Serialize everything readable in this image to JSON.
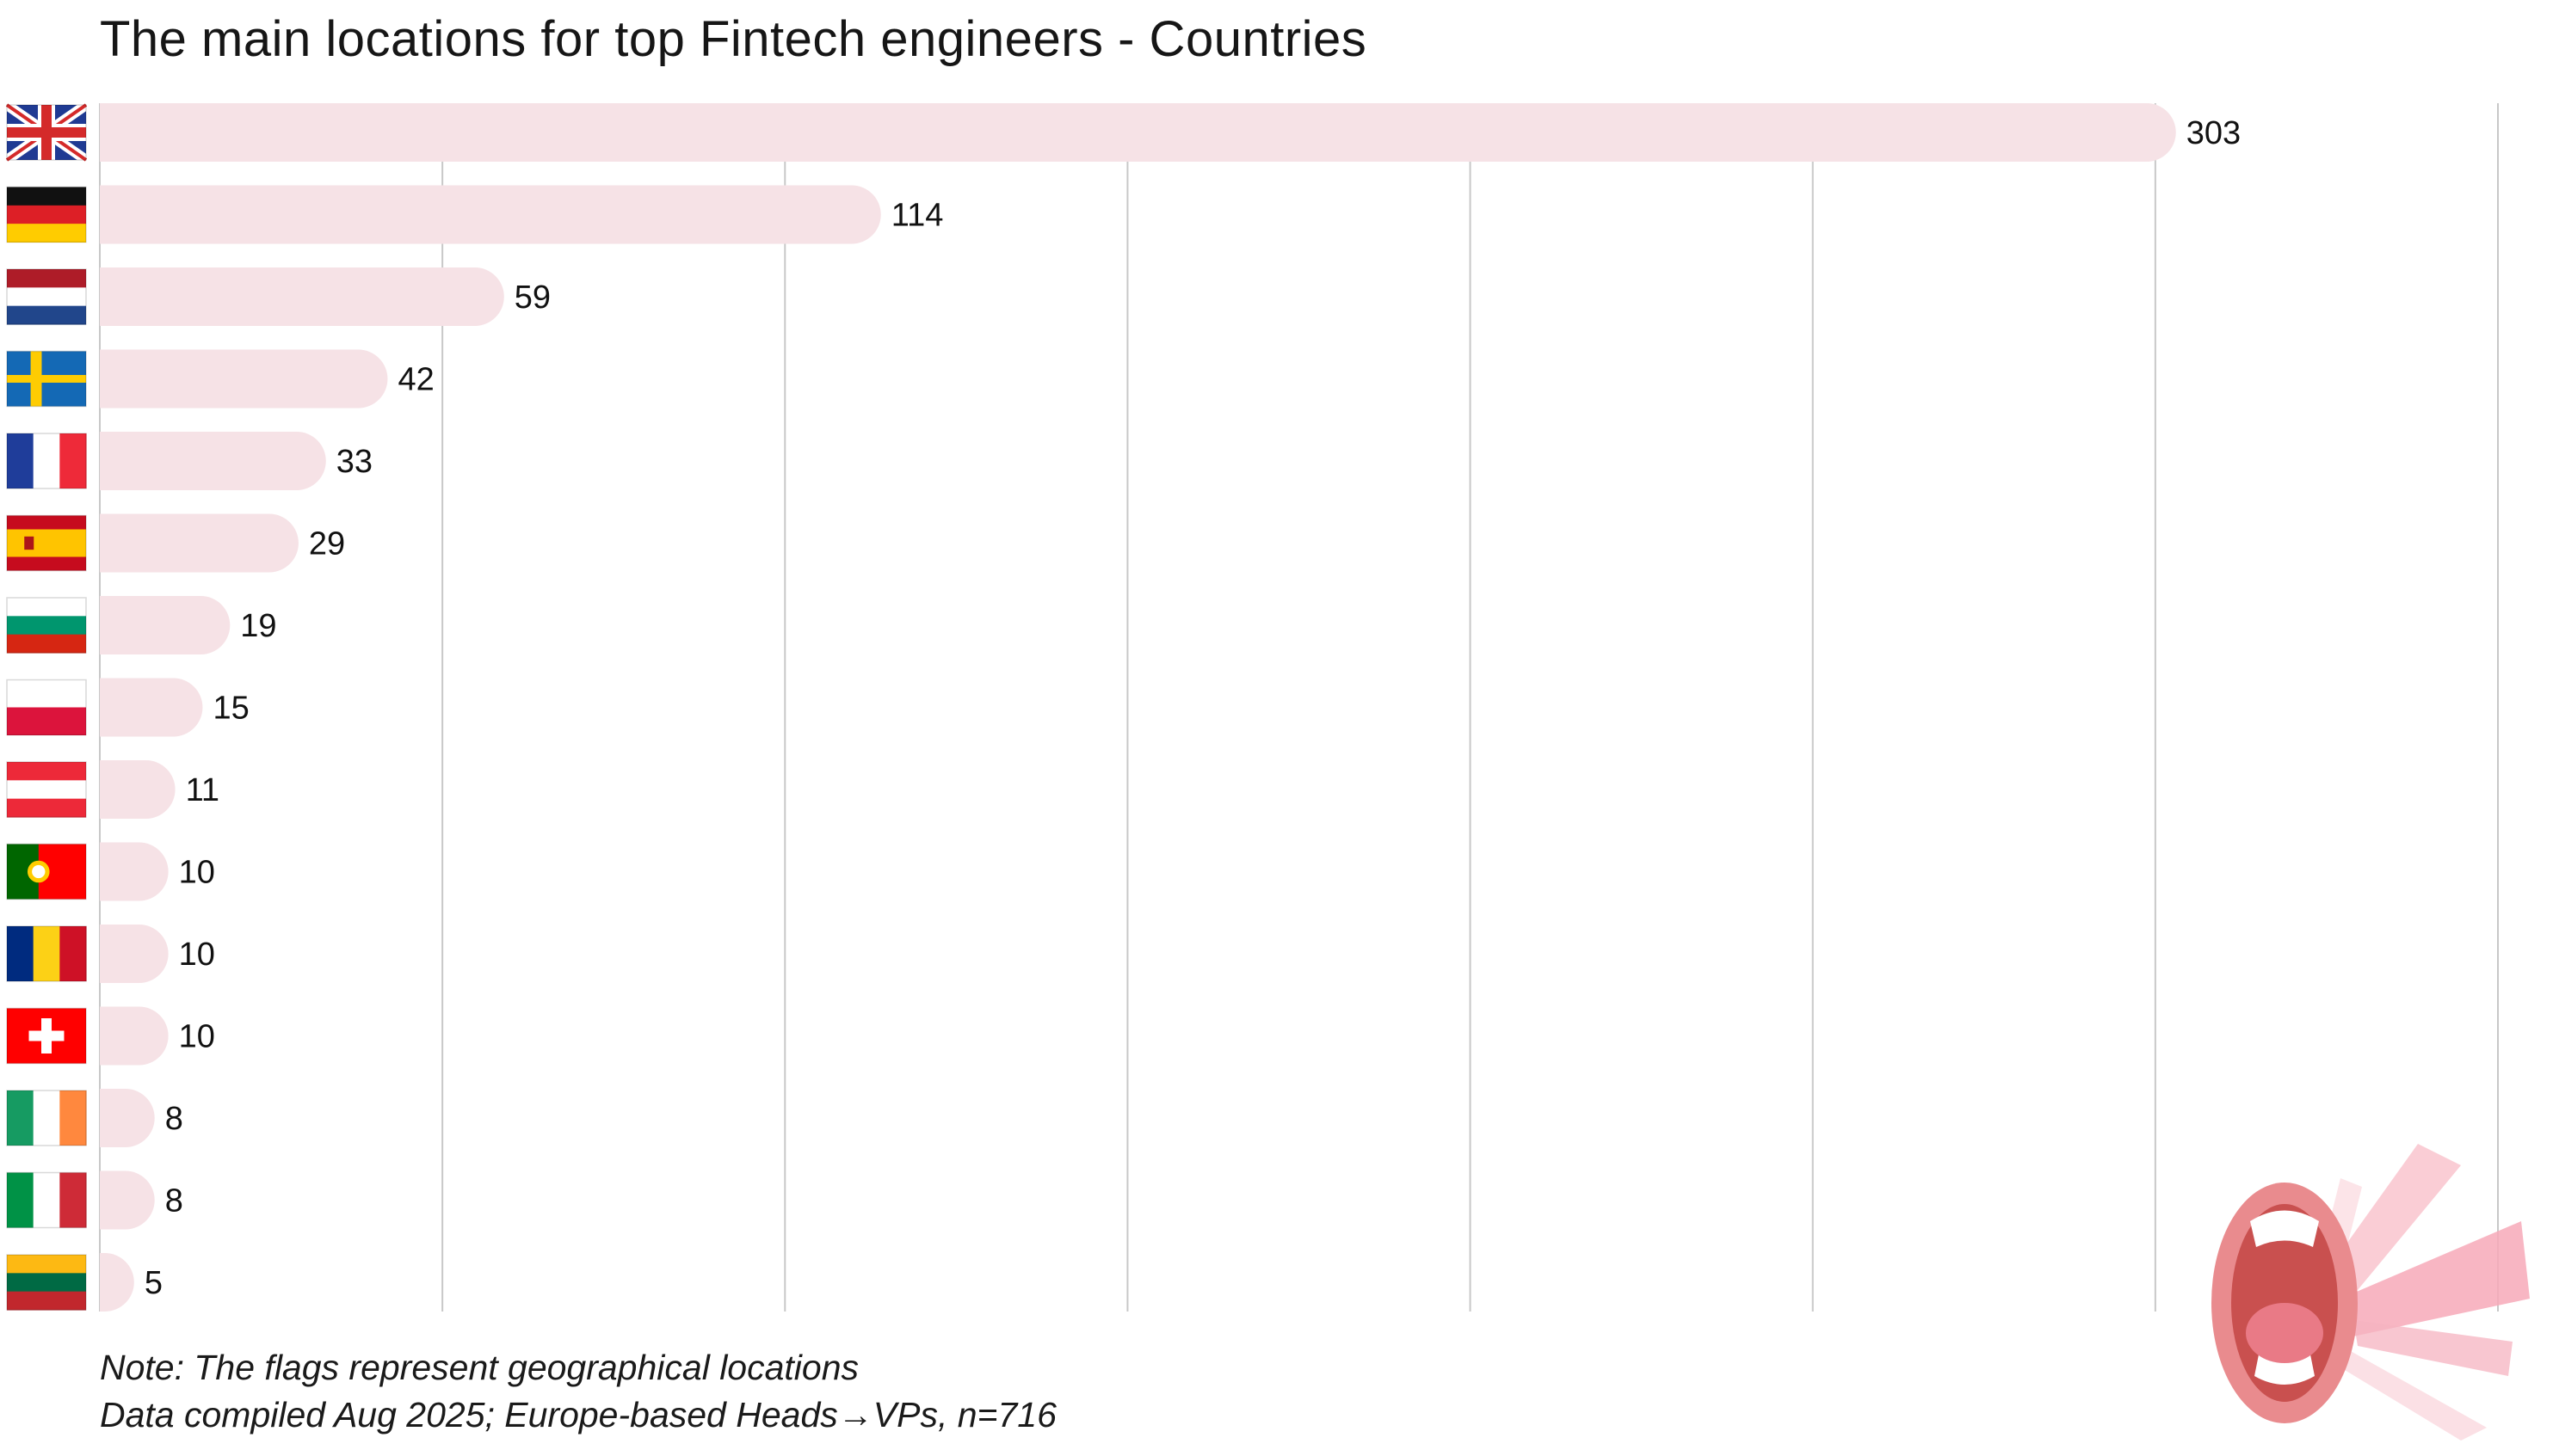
{
  "title": "The main locations for top Fintech engineers - Countries",
  "notes": {
    "line1": "Note: The flags represent geographical locations",
    "line2": "Data compiled Aug 2025; Europe-based Heads→VPs, n=716"
  },
  "colors": {
    "bar": "#f6e2e6",
    "grid": "#c8c8c8",
    "text": "#111111"
  },
  "chart_data": {
    "type": "bar",
    "orientation": "horizontal",
    "title": "The main locations for top Fintech engineers - Countries",
    "xlabel": "",
    "ylabel": "",
    "xlim": [
      0,
      350
    ],
    "grid": true,
    "legend": "none",
    "categories": [
      "United Kingdom",
      "Germany",
      "Netherlands",
      "Sweden",
      "France",
      "Spain",
      "Bulgaria",
      "Poland",
      "Austria",
      "Portugal",
      "Romania",
      "Switzerland",
      "Ireland",
      "Italy",
      "Lithuania"
    ],
    "flags": [
      "gb",
      "de",
      "nl",
      "se",
      "fr",
      "es",
      "bg",
      "pl",
      "at",
      "pt",
      "ro",
      "ch",
      "ie",
      "it",
      "lt"
    ],
    "values": [
      303,
      114,
      59,
      42,
      33,
      29,
      19,
      15,
      11,
      10,
      10,
      10,
      8,
      8,
      5
    ]
  }
}
